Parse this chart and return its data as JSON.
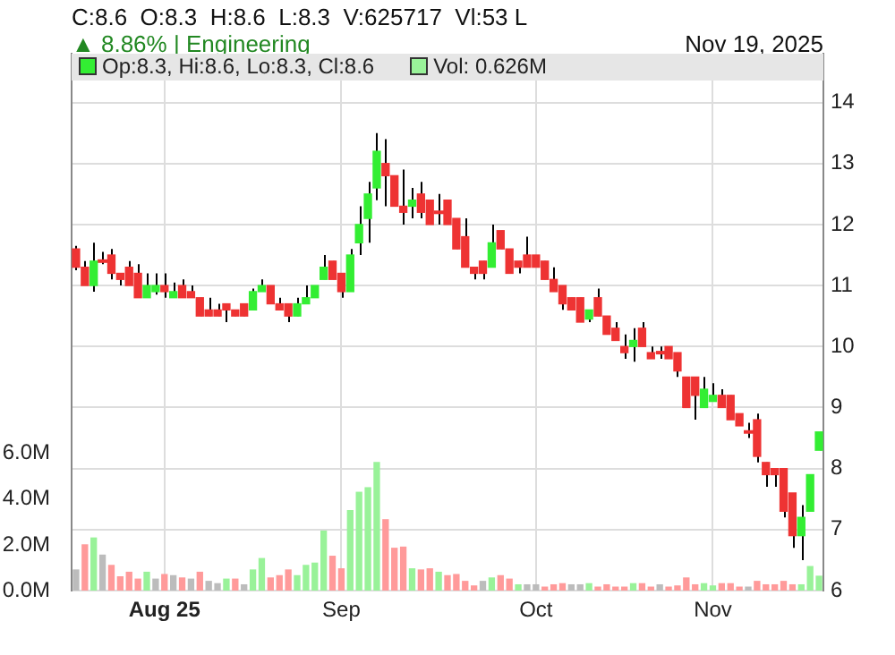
{
  "chart_data": {
    "type": "candlestick",
    "title": "C:8.6  O:8.3  H:8.6  L:8.3  V:625717  Vl:53 L",
    "subtitle": "▲ 8.86% | Engineering",
    "annotations": [
      "Nov 19, 2025"
    ],
    "categories": [
      null,
      null,
      null,
      null,
      null,
      null,
      null,
      null,
      null,
      null,
      "Aug 25",
      null,
      null,
      null,
      null,
      null,
      null,
      null,
      null,
      null,
      null,
      null,
      null,
      null,
      null,
      null,
      null,
      null,
      null,
      null,
      "Sep",
      null,
      null,
      null,
      null,
      null,
      null,
      null,
      null,
      null,
      null,
      null,
      null,
      null,
      null,
      null,
      null,
      null,
      null,
      null,
      null,
      null,
      "Oct",
      null,
      null,
      null,
      null,
      null,
      null,
      null,
      null,
      null,
      null,
      null,
      null,
      null,
      null,
      null,
      null,
      null,
      null,
      null,
      "Nov",
      null,
      null,
      null,
      null,
      null,
      null,
      null,
      null,
      null,
      null,
      null,
      null
    ],
    "series": [
      {
        "name": "Op:8.3, Hi:8.6, Lo:8.3, Cl:8.6",
        "color": "#33ee33",
        "ohlc": [
          [
            11.6,
            11.65,
            11.25,
            11.3
          ],
          [
            11.3,
            11.4,
            11.0,
            11.0
          ],
          [
            11.0,
            11.7,
            10.9,
            11.4
          ],
          [
            11.4,
            11.55,
            11.35,
            11.4
          ],
          [
            11.5,
            11.6,
            11.1,
            11.2
          ],
          [
            11.2,
            11.2,
            11.0,
            11.1
          ],
          [
            11.3,
            11.4,
            11.0,
            11.0
          ],
          [
            11.2,
            11.35,
            10.8,
            10.8
          ],
          [
            10.8,
            11.2,
            10.8,
            11.0
          ],
          [
            10.9,
            11.2,
            10.85,
            11.0
          ],
          [
            11.0,
            11.2,
            10.8,
            10.9
          ],
          [
            10.8,
            11.05,
            10.8,
            10.9
          ],
          [
            11.0,
            11.1,
            10.8,
            10.8
          ],
          [
            10.9,
            11.0,
            10.8,
            10.8
          ],
          [
            10.8,
            10.8,
            10.5,
            10.5
          ],
          [
            10.6,
            10.8,
            10.5,
            10.5
          ],
          [
            10.6,
            10.7,
            10.5,
            10.5
          ],
          [
            10.7,
            10.7,
            10.4,
            10.6
          ],
          [
            10.6,
            10.6,
            10.5,
            10.5
          ],
          [
            10.7,
            10.7,
            10.5,
            10.5
          ],
          [
            10.6,
            10.95,
            10.6,
            10.9
          ],
          [
            10.9,
            11.1,
            10.9,
            11.0
          ],
          [
            11.0,
            11.0,
            10.7,
            10.7
          ],
          [
            10.7,
            10.8,
            10.6,
            10.6
          ],
          [
            10.7,
            10.7,
            10.4,
            10.5
          ],
          [
            10.5,
            10.8,
            10.5,
            10.7
          ],
          [
            10.7,
            11.0,
            10.7,
            10.8
          ],
          [
            10.8,
            11.0,
            10.8,
            11.0
          ],
          [
            11.1,
            11.5,
            11.1,
            11.3
          ],
          [
            11.4,
            11.4,
            11.1,
            11.1
          ],
          [
            11.2,
            11.2,
            10.8,
            10.9
          ],
          [
            10.9,
            11.6,
            10.9,
            11.5
          ],
          [
            11.7,
            12.3,
            11.5,
            12.0
          ],
          [
            12.1,
            12.7,
            11.7,
            12.5
          ],
          [
            12.6,
            13.5,
            12.4,
            13.2
          ],
          [
            13.0,
            13.4,
            12.3,
            12.8
          ],
          [
            12.8,
            12.8,
            12.3,
            12.3
          ],
          [
            12.3,
            12.9,
            12.0,
            12.2
          ],
          [
            12.3,
            12.6,
            12.1,
            12.4
          ],
          [
            12.5,
            12.7,
            12.1,
            12.2
          ],
          [
            12.4,
            12.4,
            12.0,
            12.0
          ],
          [
            12.2,
            12.5,
            12.0,
            12.2
          ],
          [
            12.4,
            12.4,
            12.0,
            12.0
          ],
          [
            12.1,
            12.1,
            11.6,
            11.6
          ],
          [
            11.8,
            12.1,
            11.3,
            11.3
          ],
          [
            11.3,
            11.3,
            11.1,
            11.2
          ],
          [
            11.4,
            11.4,
            11.1,
            11.2
          ],
          [
            11.3,
            12.0,
            11.3,
            11.7
          ],
          [
            11.9,
            11.9,
            11.6,
            11.6
          ],
          [
            11.6,
            11.6,
            11.2,
            11.2
          ],
          [
            11.4,
            11.4,
            11.2,
            11.3
          ],
          [
            11.5,
            11.8,
            11.3,
            11.3
          ],
          [
            11.5,
            11.5,
            11.3,
            11.3
          ],
          [
            11.4,
            11.4,
            11.1,
            11.1
          ],
          [
            11.1,
            11.3,
            10.9,
            10.9
          ],
          [
            11.0,
            11.0,
            10.6,
            10.7
          ],
          [
            10.8,
            10.8,
            10.6,
            10.6
          ],
          [
            10.8,
            10.8,
            10.4,
            10.4
          ],
          [
            10.45,
            10.6,
            10.4,
            10.6
          ],
          [
            10.8,
            10.95,
            10.5,
            10.5
          ],
          [
            10.5,
            10.5,
            10.2,
            10.2
          ],
          [
            10.3,
            10.4,
            10.1,
            10.1
          ],
          [
            10.0,
            10.2,
            9.8,
            9.9
          ],
          [
            10.0,
            10.3,
            9.75,
            10.1
          ],
          [
            10.3,
            10.4,
            10.0,
            10.0
          ],
          [
            9.9,
            10.0,
            9.8,
            9.8
          ],
          [
            9.9,
            10.0,
            9.8,
            9.9
          ],
          [
            10.0,
            10.0,
            9.8,
            9.8
          ],
          [
            9.9,
            9.9,
            9.5,
            9.6
          ],
          [
            9.5,
            9.5,
            9.0,
            9.0
          ],
          [
            9.5,
            9.5,
            8.8,
            9.2
          ],
          [
            9.0,
            9.5,
            9.0,
            9.3
          ],
          [
            9.1,
            9.4,
            9.1,
            9.2
          ],
          [
            9.2,
            9.3,
            9.0,
            9.0
          ],
          [
            9.2,
            9.2,
            8.8,
            8.8
          ],
          [
            8.9,
            8.9,
            8.7,
            8.7
          ],
          [
            8.6,
            8.75,
            8.5,
            8.6
          ],
          [
            8.8,
            8.9,
            8.1,
            8.2
          ],
          [
            8.1,
            8.1,
            7.7,
            7.9
          ],
          [
            8.0,
            8.0,
            7.7,
            7.9
          ],
          [
            8.0,
            8.0,
            7.2,
            7.3
          ],
          [
            7.6,
            7.6,
            6.7,
            6.9
          ],
          [
            6.9,
            7.4,
            6.5,
            7.2
          ],
          [
            7.3,
            7.9,
            7.3,
            7.9
          ],
          [
            8.3,
            8.6,
            8.3,
            8.6
          ]
        ],
        "colors": [
          "#ee3333",
          "#ee3333",
          "#33ee33",
          "#ee3333",
          "#ee3333",
          "#ee3333",
          "#ee3333",
          "#ee3333",
          "#33ee33",
          "#33ee33",
          "#ee3333",
          "#33ee33",
          "#ee3333",
          "#ee3333",
          "#ee3333",
          "#ee3333",
          "#ee3333",
          "#ee3333",
          "#ee3333",
          "#ee3333",
          "#33ee33",
          "#33ee33",
          "#ee3333",
          "#ee3333",
          "#ee3333",
          "#33ee33",
          "#33ee33",
          "#33ee33",
          "#33ee33",
          "#ee3333",
          "#ee3333",
          "#33ee33",
          "#33ee33",
          "#33ee33",
          "#33ee33",
          "#ee3333",
          "#ee3333",
          "#ee3333",
          "#33ee33",
          "#ee3333",
          "#ee3333",
          "#ee3333",
          "#ee3333",
          "#ee3333",
          "#ee3333",
          "#ee3333",
          "#ee3333",
          "#33ee33",
          "#ee3333",
          "#ee3333",
          "#ee3333",
          "#ee3333",
          "#ee3333",
          "#ee3333",
          "#ee3333",
          "#ee3333",
          "#ee3333",
          "#ee3333",
          "#33ee33",
          "#ee3333",
          "#ee3333",
          "#ee3333",
          "#ee3333",
          "#33ee33",
          "#ee3333",
          "#ee3333",
          "#ee3333",
          "#ee3333",
          "#ee3333",
          "#ee3333",
          "#ee3333",
          "#33ee33",
          "#33ee33",
          "#ee3333",
          "#ee3333",
          "#ee3333",
          "#ee3333",
          "#ee3333",
          "#ee3333",
          "#ee3333",
          "#ee3333",
          "#ee3333",
          "#33ee33",
          "#33ee33",
          "#33ee33"
        ]
      },
      {
        "type": "bar",
        "axis": "y2",
        "name": "Vol: 0.626M",
        "color": "#99f299",
        "values": [
          0.9,
          2.0,
          2.3,
          1.55,
          1.1,
          0.6,
          0.8,
          0.5,
          0.8,
          0.5,
          0.7,
          0.65,
          0.55,
          0.5,
          0.8,
          0.4,
          0.3,
          0.5,
          0.5,
          0.25,
          0.9,
          1.4,
          0.55,
          0.65,
          0.9,
          0.65,
          1.1,
          1.2,
          2.6,
          1.5,
          0.95,
          3.5,
          4.3,
          4.5,
          5.6,
          3.1,
          1.85,
          1.9,
          0.95,
          0.9,
          0.95,
          0.8,
          0.65,
          0.7,
          0.4,
          0.2,
          0.4,
          0.55,
          0.65,
          0.5,
          0.25,
          0.25,
          0.25,
          0.15,
          0.25,
          0.3,
          0.25,
          0.25,
          0.3,
          0.15,
          0.25,
          0.15,
          0.15,
          0.3,
          0.3,
          0.15,
          0.25,
          0.15,
          0.2,
          0.55,
          0.25,
          0.3,
          0.2,
          0.3,
          0.3,
          0.15,
          0.15,
          0.4,
          0.25,
          0.25,
          0.4,
          0.25,
          0.25,
          1.05,
          0.626
        ],
        "colors": [
          "#bcbcbc",
          "#ff9a9a",
          "#99f299",
          "#bcbcbc",
          "#ff9a9a",
          "#ff9a9a",
          "#ff9a9a",
          "#ff9a9a",
          "#99f299",
          "#bcbcbc",
          "#ff9a9a",
          "#bcbcbc",
          "#ff9a9a",
          "#bcbcbc",
          "#ff9a9a",
          "#bcbcbc",
          "#bcbcbc",
          "#99f299",
          "#ff9a9a",
          "#bcbcbc",
          "#99f299",
          "#99f299",
          "#ff9a9a",
          "#ff9a9a",
          "#ff9a9a",
          "#99f299",
          "#99f299",
          "#99f299",
          "#99f299",
          "#ff9a9a",
          "#ff9a9a",
          "#99f299",
          "#99f299",
          "#99f299",
          "#99f299",
          "#ff9a9a",
          "#ff9a9a",
          "#ff9a9a",
          "#99f299",
          "#ff9a9a",
          "#ff9a9a",
          "#99f299",
          "#ff9a9a",
          "#ff9a9a",
          "#ff9a9a",
          "#ff9a9a",
          "#bcbcbc",
          "#99f299",
          "#ff9a9a",
          "#ff9a9a",
          "#99f299",
          "#bcbcbc",
          "#bcbcbc",
          "#ff9a9a",
          "#ff9a9a",
          "#ff9a9a",
          "#bcbcbc",
          "#bcbcbc",
          "#99f299",
          "#ff9a9a",
          "#ff9a9a",
          "#ff9a9a",
          "#ff9a9a",
          "#99f299",
          "#ff9a9a",
          "#ff9a9a",
          "#bcbcbc",
          "#ff9a9a",
          "#ff9a9a",
          "#ff9a9a",
          "#ff9a9a",
          "#99f299",
          "#99f299",
          "#ff9a9a",
          "#ff9a9a",
          "#ff9a9a",
          "#bcbcbc",
          "#ff9a9a",
          "#ff9a9a",
          "#ff9a9a",
          "#ff9a9a",
          "#ff9a9a",
          "#99f299",
          "#99f299",
          "#99f299"
        ]
      }
    ],
    "ylim": [
      6,
      14.8
    ],
    "yticks": [
      6,
      7,
      8,
      9,
      10,
      11,
      12,
      13,
      14
    ],
    "y2lim": [
      0,
      23.5
    ],
    "y2ticks": [
      {
        "value": 0,
        "label": "0.0M"
      },
      {
        "value": 2,
        "label": "2.0M"
      },
      {
        "value": 4,
        "label": "4.0M"
      },
      {
        "value": 6,
        "label": "6.0M"
      }
    ],
    "grid": true,
    "legend": "top"
  }
}
